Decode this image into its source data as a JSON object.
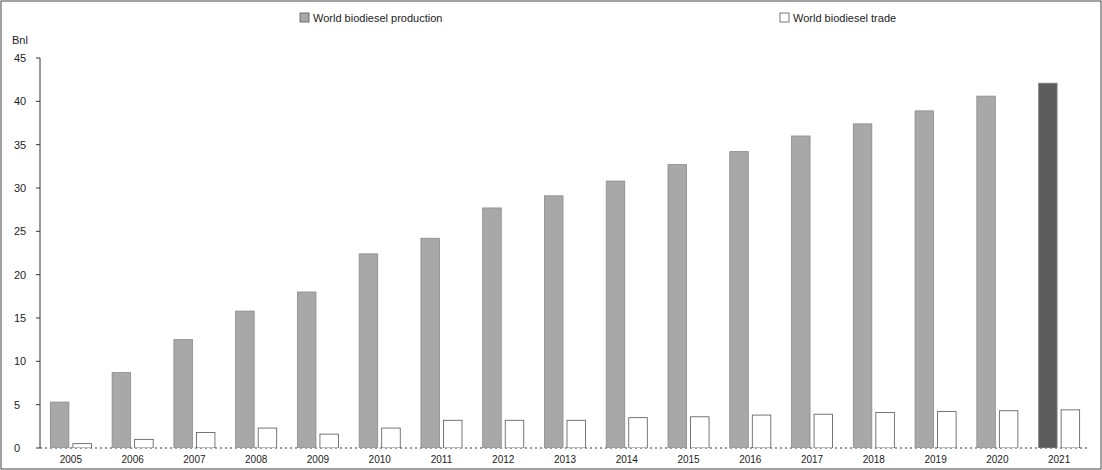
{
  "chart_data": {
    "type": "bar",
    "y_label": "Bnl",
    "categories": [
      "2005",
      "2006",
      "2007",
      "2008",
      "2009",
      "2010",
      "2011",
      "2012",
      "2013",
      "2014",
      "2015",
      "2016",
      "2017",
      "2018",
      "2019",
      "2020",
      "2021"
    ],
    "series": [
      {
        "name": "World biodiesel production",
        "color": "#a8a8a8",
        "colors": [
          "#a8a8a8",
          "#a8a8a8",
          "#a8a8a8",
          "#a8a8a8",
          "#a8a8a8",
          "#a8a8a8",
          "#a8a8a8",
          "#a8a8a8",
          "#a8a8a8",
          "#a8a8a8",
          "#a8a8a8",
          "#a8a8a8",
          "#a8a8a8",
          "#a8a8a8",
          "#a8a8a8",
          "#a8a8a8",
          "#5c5c5c"
        ],
        "values": [
          5.3,
          8.7,
          12.5,
          15.8,
          18,
          22.4,
          24.2,
          27.7,
          29.1,
          30.8,
          32.7,
          34.2,
          36,
          37.4,
          38.9,
          40.6,
          42.1
        ]
      },
      {
        "name": "World biodiesel trade",
        "color": "#ffffff",
        "values": [
          0.5,
          1.0,
          1.8,
          2.3,
          1.6,
          2.3,
          3.2,
          3.2,
          3.2,
          3.5,
          3.6,
          3.8,
          3.9,
          4.1,
          4.2,
          4.3,
          4.4
        ]
      }
    ],
    "ylim": [
      0,
      45
    ],
    "yticks": [
      0,
      5,
      10,
      15,
      20,
      25,
      30,
      35,
      40,
      45
    ],
    "grid": false,
    "legend": "top"
  }
}
